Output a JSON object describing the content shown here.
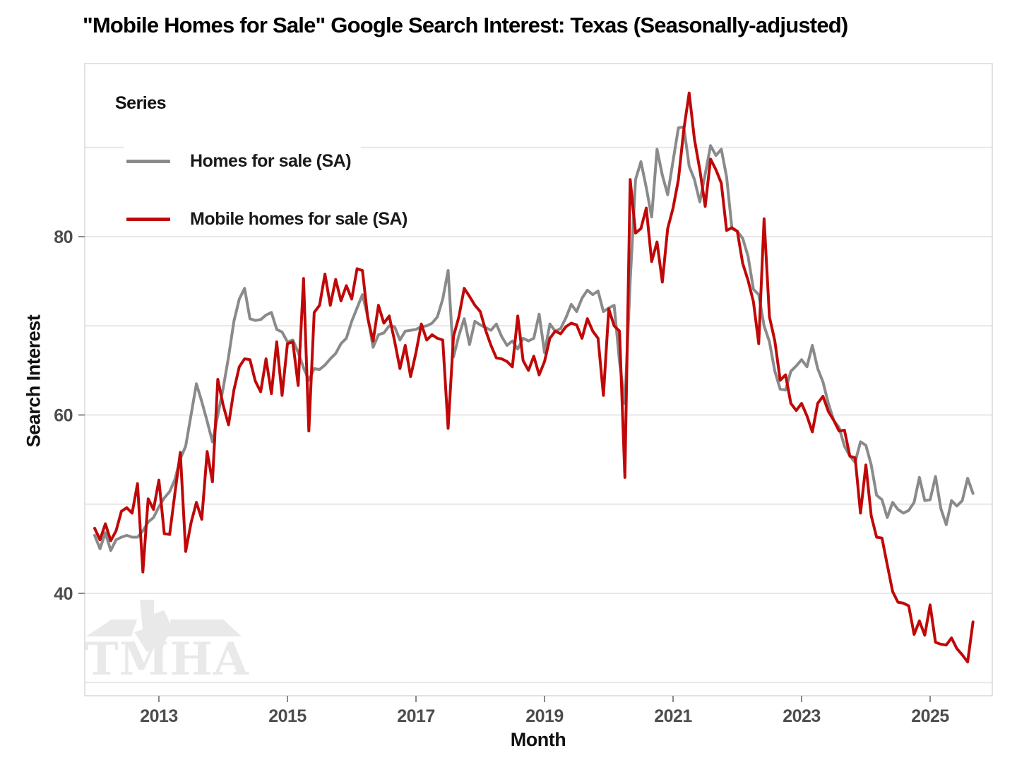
{
  "title": "\"Mobile Homes for Sale\" Google Search Interest: Texas (Seasonally-adjusted)",
  "watermark_text": "TMHA",
  "legend": {
    "title": "Series",
    "entries": [
      {
        "label": "Homes for sale (SA)",
        "color": "#8a8a8a"
      },
      {
        "label": "Mobile homes for sale (SA)",
        "color": "#c00808"
      }
    ]
  },
  "colors": {
    "gray_series": "#8a8a8a",
    "red_series": "#c00808",
    "gridline": "#e7e7e7",
    "panel_border": "#d8d8d8",
    "tick_mark": "#8a8a8a",
    "tick_text": "#4d4d4d",
    "watermark": "#e9e9e9"
  },
  "chart_data": {
    "type": "line",
    "title": "\"Mobile Homes for Sale\" Google Search Interest: Texas (Seasonally-adjusted)",
    "xlabel": "Month",
    "ylabel": "Search Interest",
    "x_start": "2012-01",
    "x_end": "2025-09",
    "x_interval": "monthly",
    "x_ticks": [
      2013,
      2015,
      2017,
      2019,
      2021,
      2023,
      2025
    ],
    "y_ticks_major": [
      40,
      60,
      80
    ],
    "y_gridlines": [
      30,
      40,
      50,
      60,
      70,
      80,
      90
    ],
    "ylim": [
      28.5,
      99.5
    ],
    "grid": "horizontal-only",
    "legend_position": "inside-top-left",
    "series": [
      {
        "name": "Homes for sale (SA)",
        "color": "#8a8a8a",
        "values": [
          46.5,
          45.0,
          46.8,
          44.8,
          46.0,
          46.3,
          46.5,
          46.3,
          46.3,
          47.0,
          48.0,
          48.5,
          49.7,
          50.7,
          51.4,
          52.8,
          55.1,
          56.5,
          60.0,
          63.5,
          61.5,
          59.3,
          57.0,
          60.0,
          63.0,
          66.5,
          70.5,
          73.0,
          74.2,
          70.8,
          70.6,
          70.7,
          71.2,
          71.5,
          69.6,
          69.3,
          68.2,
          68.4,
          67.0,
          65.3,
          63.9,
          65.2,
          65.1,
          65.6,
          66.3,
          66.9,
          68.0,
          68.6,
          70.5,
          72.0,
          73.5,
          71.0,
          67.6,
          69.0,
          69.2,
          70.0,
          69.9,
          68.4,
          69.4,
          69.5,
          69.6,
          69.9,
          70.0,
          70.3,
          71.0,
          73.0,
          76.2,
          66.5,
          68.9,
          70.8,
          67.9,
          70.5,
          70.1,
          69.8,
          69.5,
          70.2,
          68.8,
          67.8,
          68.3,
          67.4,
          68.6,
          68.3,
          68.6,
          71.3,
          67.0,
          70.2,
          69.4,
          69.7,
          70.9,
          72.4,
          71.6,
          73.1,
          74.0,
          73.5,
          73.9,
          71.6,
          72.0,
          72.3,
          66.0,
          61.3,
          75.0,
          86.4,
          88.4,
          85.5,
          82.2,
          89.8,
          86.9,
          84.7,
          88.5,
          92.2,
          92.3,
          87.9,
          86.4,
          83.9,
          87.0,
          90.2,
          89.1,
          89.8,
          86.7,
          80.9,
          80.6,
          79.8,
          77.8,
          74.1,
          73.5,
          70.0,
          68.2,
          64.9,
          62.9,
          62.8,
          64.9,
          65.5,
          66.2,
          65.4,
          67.8,
          65.2,
          63.7,
          61.3,
          59.4,
          58.6,
          56.5,
          55.4,
          54.7,
          57.0,
          56.6,
          54.4,
          51.0,
          50.5,
          48.5,
          50.2,
          49.4,
          49.0,
          49.3,
          50.2,
          53.0,
          50.4,
          50.5,
          53.1,
          49.5,
          47.7,
          50.4,
          49.8,
          50.4,
          52.9,
          51.2
        ]
      },
      {
        "name": "Mobile homes for sale (SA)",
        "color": "#c00808",
        "values": [
          47.3,
          46.0,
          47.8,
          45.9,
          47.0,
          49.2,
          49.6,
          49.0,
          52.3,
          42.4,
          50.6,
          49.4,
          52.7,
          46.7,
          46.6,
          51.3,
          55.8,
          44.7,
          47.9,
          50.2,
          48.3,
          55.9,
          52.5,
          64.0,
          61.1,
          58.9,
          62.8,
          65.4,
          66.3,
          66.2,
          63.8,
          62.6,
          66.3,
          62.4,
          68.2,
          62.2,
          68.0,
          68.2,
          63.3,
          75.3,
          58.2,
          71.5,
          72.3,
          75.8,
          72.3,
          75.2,
          72.8,
          74.5,
          73.0,
          76.4,
          76.2,
          70.8,
          68.3,
          72.3,
          70.3,
          71.1,
          68.3,
          65.2,
          67.8,
          64.3,
          67.0,
          70.2,
          68.4,
          69.0,
          68.6,
          68.4,
          58.5,
          68.8,
          71.0,
          74.2,
          73.3,
          72.3,
          71.6,
          69.5,
          67.8,
          66.4,
          66.3,
          66.0,
          65.4,
          71.1,
          66.1,
          65.0,
          66.6,
          64.5,
          66.0,
          68.6,
          69.4,
          69.1,
          69.9,
          70.3,
          70.1,
          68.6,
          70.8,
          69.4,
          68.6,
          62.2,
          71.9,
          70.0,
          69.4,
          53.0,
          86.4,
          80.4,
          80.9,
          83.2,
          77.2,
          79.4,
          74.9,
          80.9,
          83.2,
          86.4,
          92.0,
          96.1,
          90.9,
          87.5,
          83.4,
          88.7,
          87.5,
          86.0,
          80.7,
          81.0,
          80.6,
          77.0,
          75.1,
          72.7,
          68.0,
          82.0,
          71.0,
          68.3,
          63.9,
          64.5,
          61.3,
          60.5,
          61.3,
          59.9,
          58.1,
          61.3,
          62.1,
          60.4,
          59.4,
          58.2,
          58.3,
          55.4,
          55.2,
          49.0,
          54.4,
          48.7,
          46.3,
          46.2,
          43.2,
          40.2,
          39.0,
          38.9,
          38.6,
          35.4,
          36.9,
          35.3,
          38.7,
          34.5,
          34.3,
          34.2,
          35.0,
          33.8,
          33.1,
          32.3,
          36.8
        ]
      }
    ]
  }
}
